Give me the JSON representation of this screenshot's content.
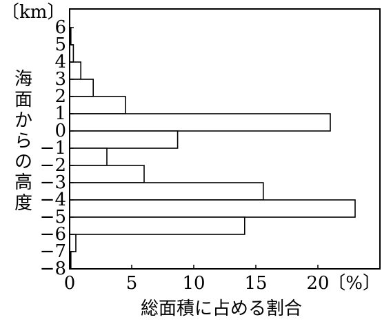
{
  "chart_data": {
    "type": "bar",
    "orientation": "horizontal",
    "title": "",
    "xlabel": "総面積に占める割合",
    "ylabel": "海面からの高度",
    "x_unit": "〔%〕",
    "y_unit": "〔km〕",
    "xlim": [
      0,
      25
    ],
    "ylim": [
      -8,
      6
    ],
    "x_ticks": [
      "0",
      "5",
      "10",
      "15",
      "20"
    ],
    "y_ticks": [
      "6",
      "5",
      "4",
      "3",
      "2",
      "1",
      "0",
      "−1",
      "−2",
      "−3",
      "−4",
      "−5",
      "−6",
      "−7",
      "−8"
    ],
    "bins": [
      {
        "from": 5,
        "to": 6,
        "value": 0.1
      },
      {
        "from": 4,
        "to": 5,
        "value": 0.3
      },
      {
        "from": 3,
        "to": 4,
        "value": 0.9
      },
      {
        "from": 2,
        "to": 3,
        "value": 1.9
      },
      {
        "from": 1,
        "to": 2,
        "value": 4.5
      },
      {
        "from": 0,
        "to": 1,
        "value": 21.0
      },
      {
        "from": -1,
        "to": 0,
        "value": 8.7
      },
      {
        "from": -2,
        "to": -1,
        "value": 3.0
      },
      {
        "from": -3,
        "to": -2,
        "value": 6.0
      },
      {
        "from": -4,
        "to": -3,
        "value": 15.6
      },
      {
        "from": -5,
        "to": -4,
        "value": 23.0
      },
      {
        "from": -6,
        "to": -5,
        "value": 14.1
      },
      {
        "from": -7,
        "to": -6,
        "value": 0.5
      },
      {
        "from": -8,
        "to": -7,
        "value": 0.1
      }
    ],
    "grid": false,
    "legend": "none"
  }
}
